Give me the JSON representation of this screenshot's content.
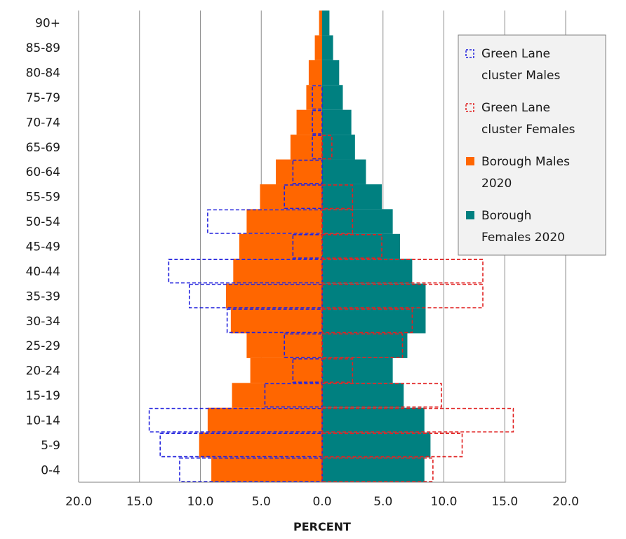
{
  "chart_data": {
    "type": "bar",
    "orientation": "horizontal",
    "subtype": "population-pyramid",
    "xlabel": "PERCENT",
    "xlim": [
      -20,
      20
    ],
    "xticks": [
      -20,
      -15,
      -10,
      -5,
      0,
      5,
      10,
      15,
      20
    ],
    "xtick_labels": [
      "20.0",
      "15.0",
      "10.0",
      "5.0",
      "0.0",
      "5.0",
      "10.0",
      "15.0",
      "20.0"
    ],
    "grid": "vertical",
    "legend_position": "top-right",
    "categories": [
      "0-4",
      "5-9",
      "10-14",
      "15-19",
      "20-24",
      "25-29",
      "30-34",
      "35-39",
      "40-44",
      "45-49",
      "50-54",
      "55-59",
      "60-64",
      "65-69",
      "70-74",
      "75-79",
      "80-84",
      "85-89",
      "90+"
    ],
    "series": [
      {
        "name": "Green Lane cluster Males",
        "style": "dashed-outline",
        "side": "left",
        "color": "#2222dd",
        "values": [
          11.7,
          13.3,
          14.2,
          4.7,
          2.4,
          3.1,
          7.8,
          10.9,
          12.6,
          2.4,
          9.4,
          3.1,
          2.4,
          0.8,
          0.8,
          0.8,
          0,
          0,
          0
        ]
      },
      {
        "name": "Green Lane cluster Females",
        "style": "dashed-outline",
        "side": "right",
        "color": "#e02020",
        "values": [
          9.1,
          11.5,
          15.7,
          9.8,
          2.5,
          6.6,
          7.4,
          13.2,
          13.2,
          4.9,
          2.5,
          2.5,
          0,
          0.8,
          0,
          0,
          0,
          0,
          0
        ]
      },
      {
        "name": "Borough Males 2020",
        "style": "filled",
        "side": "left",
        "color": "#ff6600",
        "values": [
          9.1,
          10.1,
          9.4,
          7.4,
          5.9,
          6.2,
          7.5,
          7.9,
          7.3,
          6.8,
          6.2,
          5.1,
          3.8,
          2.6,
          2.1,
          1.3,
          1.1,
          0.6,
          0.25
        ]
      },
      {
        "name": "Borough Females 2020",
        "style": "filled",
        "side": "right",
        "color": "#008080",
        "values": [
          8.4,
          8.9,
          8.4,
          6.7,
          5.8,
          7.0,
          8.5,
          8.5,
          7.4,
          6.4,
          5.8,
          4.9,
          3.6,
          2.7,
          2.4,
          1.7,
          1.4,
          0.9,
          0.6
        ]
      }
    ]
  },
  "legend": {
    "entries": [
      {
        "line1": "Green Lane",
        "line2": "cluster Males",
        "swatch": "dashed",
        "color": "#2222dd"
      },
      {
        "line1": "Green Lane",
        "line2": "cluster Females",
        "swatch": "dashed",
        "color": "#e02020"
      },
      {
        "line1": "Borough Males",
        "line2": "2020",
        "swatch": "filled",
        "color": "#ff6600"
      },
      {
        "line1": "Borough",
        "line2": "Females 2020",
        "swatch": "filled",
        "color": "#008080"
      }
    ]
  }
}
